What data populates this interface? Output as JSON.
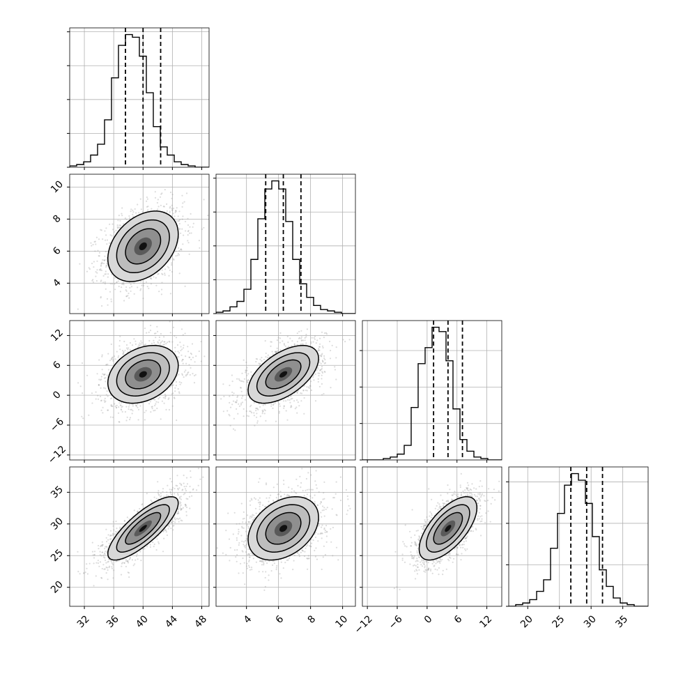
{
  "chart_data": {
    "type": "corner",
    "grid": true,
    "quantiles": [
      0.16,
      0.5,
      0.84
    ],
    "contour_levels_sigma": [
      0.5,
      1.0,
      1.5,
      2.0
    ],
    "parameters": [
      {
        "range": [
          30,
          49
        ],
        "ticks": [
          32,
          36,
          40,
          44,
          48
        ],
        "tick_labels": [
          "32",
          "36",
          "40",
          "44",
          "48"
        ],
        "quantile_values": [
          37.6,
          40.0,
          42.4
        ],
        "mean": 40.0,
        "std": 2.4,
        "hist_counts": [
          1,
          2,
          4,
          9,
          17,
          35,
          66,
          90,
          98,
          96,
          82,
          55,
          30,
          15,
          9,
          4,
          2,
          1,
          0,
          0
        ]
      },
      {
        "range": [
          2.1,
          10.8
        ],
        "ticks": [
          4,
          6,
          8,
          10
        ],
        "tick_labels": [
          "4",
          "6",
          "8",
          "10"
        ],
        "quantile_values": [
          5.2,
          6.3,
          7.4
        ],
        "mean": 6.3,
        "std": 1.1,
        "hist_counts": [
          1,
          2,
          5,
          9,
          18,
          40,
          70,
          92,
          98,
          92,
          68,
          40,
          22,
          12,
          6,
          3,
          2,
          1,
          0,
          0
        ]
      },
      {
        "range": [
          -13,
          15
        ],
        "ticks": [
          -12,
          -6,
          0,
          6,
          12
        ],
        "tick_labels": [
          "−12",
          "−6",
          "0",
          "6",
          "12"
        ],
        "quantile_values": [
          1.3,
          4.2,
          7.1
        ],
        "mean": 4.2,
        "std": 2.9,
        "hist_counts": [
          0,
          0,
          0,
          1,
          2,
          4,
          10,
          36,
          66,
          77,
          91,
          88,
          68,
          35,
          14,
          6,
          2,
          1,
          0,
          0
        ]
      },
      {
        "range": [
          17,
          39
        ],
        "ticks": [
          20,
          25,
          30,
          35
        ],
        "tick_labels": [
          "20",
          "25",
          "30",
          "35"
        ],
        "quantile_values": [
          26.8,
          29.3,
          31.8
        ],
        "mean": 29.3,
        "std": 2.5,
        "hist_counts": [
          0,
          1,
          2,
          4,
          9,
          16,
          35,
          56,
          73,
          80,
          76,
          62,
          42,
          22,
          12,
          5,
          2,
          1,
          0,
          0
        ]
      }
    ],
    "correlations": [
      {
        "row": 1,
        "col": 0,
        "rho": 0.35
      },
      {
        "row": 2,
        "col": 0,
        "rho": 0.3
      },
      {
        "row": 2,
        "col": 1,
        "rho": 0.55
      },
      {
        "row": 3,
        "col": 0,
        "rho": 0.8
      },
      {
        "row": 3,
        "col": 1,
        "rho": 0.35
      },
      {
        "row": 3,
        "col": 2,
        "rho": 0.65
      }
    ],
    "colors": {
      "line": "#000000",
      "points": "#9a9a9a",
      "grid": "#b0b0b0"
    }
  }
}
